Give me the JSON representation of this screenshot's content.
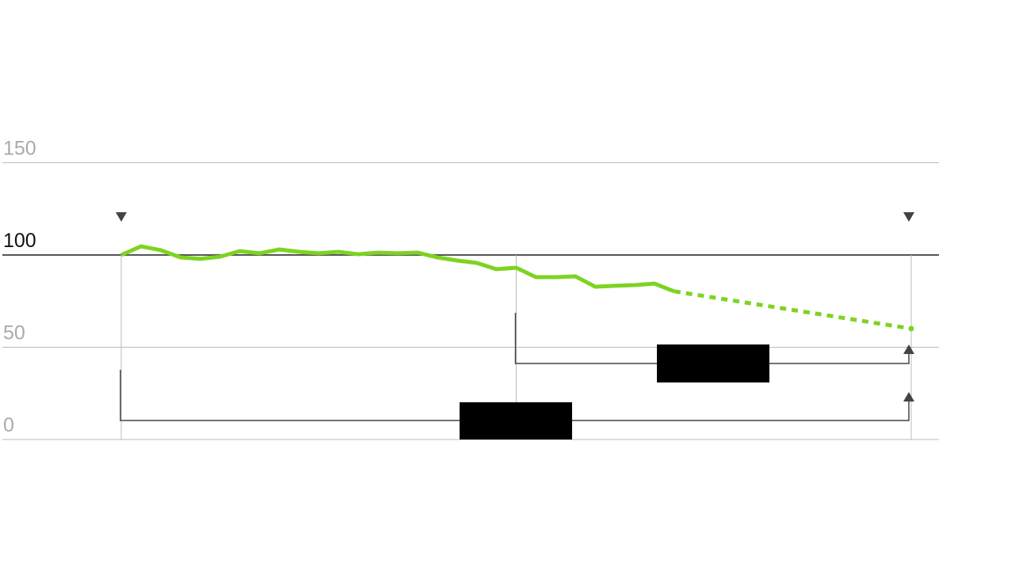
{
  "chart_data": {
    "type": "line",
    "title": "",
    "xlabel": "",
    "ylabel": "",
    "ylim": [
      0,
      150
    ],
    "yticks": [
      "0",
      "50",
      "100",
      "150"
    ],
    "highlighted_tick": "100",
    "grid": true,
    "legend": "none",
    "x": [
      0,
      1,
      2,
      3,
      4,
      5,
      6,
      7,
      8,
      9,
      10,
      11,
      12,
      13,
      14,
      15,
      16,
      17,
      18,
      19,
      20,
      21,
      22,
      23,
      24,
      25,
      26,
      27,
      28
    ],
    "series": [
      {
        "values": [
          100,
          104.7,
          102.6,
          98.7,
          97.9,
          99.1,
          102.1,
          100.9,
          103.0,
          101.7,
          100.9,
          101.7,
          100.4,
          101.3,
          100.9,
          101.3,
          98.7,
          97.0,
          95.7,
          92.3,
          93.1,
          88.0,
          88.0,
          88.4,
          82.8,
          83.3,
          83.7,
          84.5,
          80.3
        ],
        "projection": {
          "x": [
            28,
            40
          ],
          "values": [
            80.3,
            60.1
          ],
          "style": "dashed"
        }
      }
    ],
    "vertical_markers_x": [
      0,
      20,
      40
    ],
    "colors": {
      "line": "#7ed321",
      "grid": "#bbbbbb",
      "baseline": "#555555",
      "tick_muted": "#aaaaaa",
      "tick_highlight": "#111111",
      "annotation": "#444444",
      "label_box": "#000000"
    }
  }
}
